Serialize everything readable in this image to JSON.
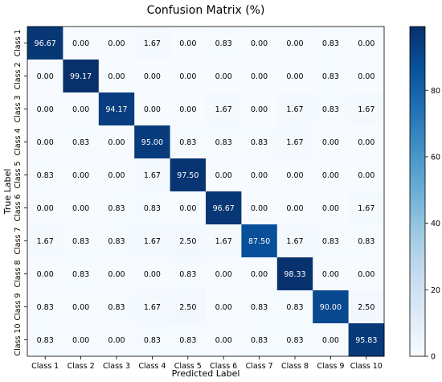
{
  "chart_data": {
    "type": "heatmap",
    "title": "Confusion Matrix (%)",
    "xlabel": "Predicted Label",
    "ylabel": "True Label",
    "x_categories": [
      "Class 1",
      "Class 2",
      "Class 3",
      "Class 4",
      "Class 5",
      "Class 6",
      "Class 7",
      "Class 8",
      "Class 9",
      "Class 10"
    ],
    "y_categories": [
      "Class 1",
      "Class 2",
      "Class 3",
      "Class 4",
      "Class 5",
      "Class 6",
      "Class 7",
      "Class 8",
      "Class 9",
      "Class 10"
    ],
    "values": [
      [
        96.67,
        0.0,
        0.0,
        1.67,
        0.0,
        0.83,
        0.0,
        0.0,
        0.83,
        0.0
      ],
      [
        0.0,
        99.17,
        0.0,
        0.0,
        0.0,
        0.0,
        0.0,
        0.0,
        0.83,
        0.0
      ],
      [
        0.0,
        0.0,
        94.17,
        0.0,
        0.0,
        1.67,
        0.0,
        1.67,
        0.83,
        1.67
      ],
      [
        0.0,
        0.83,
        0.0,
        95.0,
        0.83,
        0.83,
        0.83,
        1.67,
        0.0,
        0.0
      ],
      [
        0.83,
        0.0,
        0.0,
        1.67,
        97.5,
        0.0,
        0.0,
        0.0,
        0.0,
        0.0
      ],
      [
        0.0,
        0.0,
        0.83,
        0.83,
        0.0,
        96.67,
        0.0,
        0.0,
        0.0,
        1.67
      ],
      [
        1.67,
        0.83,
        0.83,
        1.67,
        2.5,
        1.67,
        87.5,
        1.67,
        0.83,
        0.83
      ],
      [
        0.0,
        0.83,
        0.0,
        0.0,
        0.83,
        0.0,
        0.0,
        98.33,
        0.0,
        0.0
      ],
      [
        0.83,
        0.0,
        0.83,
        1.67,
        2.5,
        0.0,
        0.83,
        0.83,
        90.0,
        2.5
      ],
      [
        0.83,
        0.0,
        0.0,
        0.83,
        0.83,
        0.0,
        0.83,
        0.83,
        0.0,
        95.83
      ]
    ],
    "colorbar": {
      "min": 0,
      "max": 99.17,
      "ticks": [
        0,
        20,
        40,
        60,
        80
      ],
      "colormap": "Blues"
    },
    "grid": false
  }
}
